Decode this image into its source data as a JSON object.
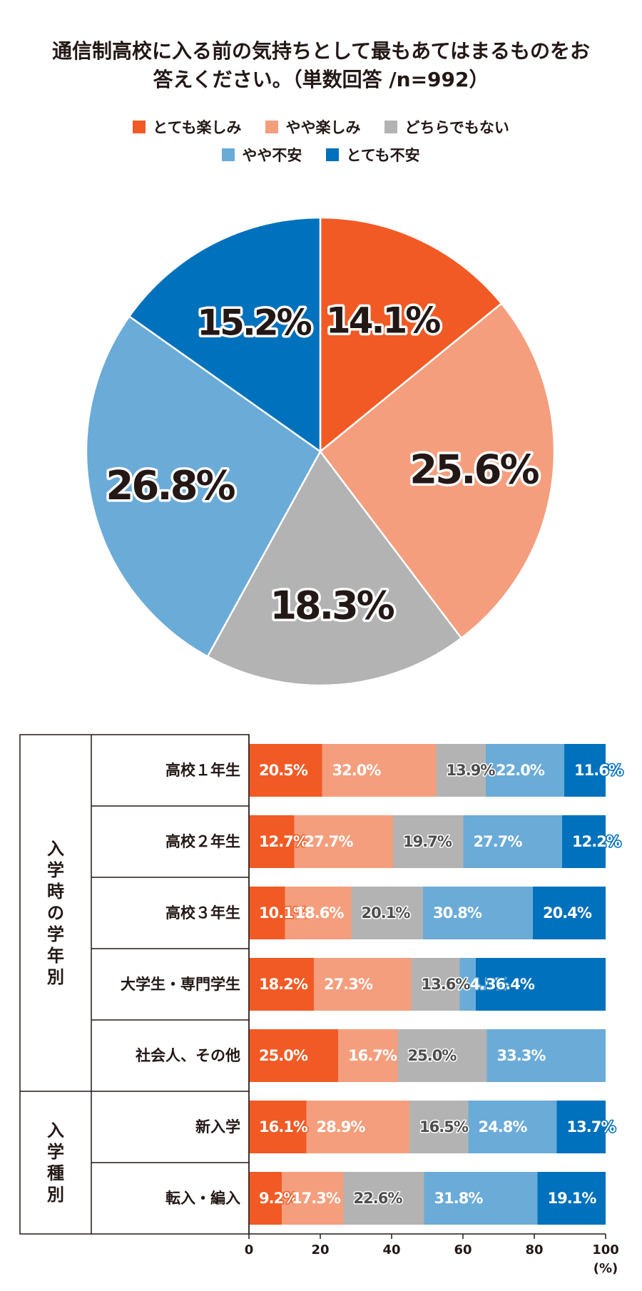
{
  "title_line1": "通信制高校に入る前の気持ちとして最もあてはまるものをお",
  "title_line2": "答えください。（単数回答 /n=992）",
  "chart_data": [
    {
      "type": "pie",
      "categories": [
        "とても楽しみ",
        "やや楽しみ",
        "どちらでもない",
        "やや不安",
        "とても不安"
      ],
      "colors": [
        "#f15a24",
        "#f59e7d",
        "#b3b3b3",
        "#6aabd8",
        "#0071bc"
      ],
      "values": [
        14.1,
        25.6,
        18.3,
        26.8,
        15.2
      ],
      "value_labels": [
        "14.1%",
        "25.6%",
        "18.3%",
        "26.8%",
        "15.2%"
      ],
      "start": "12 o'clock",
      "direction": "clockwise"
    },
    {
      "type": "bar",
      "orientation": "horizontal",
      "stacked": true,
      "categories": [
        "高校１年生",
        "高校２年生",
        "高校３年生",
        "大学生・専門学生",
        "社会人、その他",
        "新入学",
        "転入・編入"
      ],
      "groups": [
        {
          "label": "入学時の学年別",
          "rows": 5
        },
        {
          "label": "入学種別",
          "rows": 2
        }
      ],
      "series": [
        {
          "name": "とても楽しみ",
          "color": "#f15a24",
          "values": [
            20.5,
            12.7,
            10.1,
            18.2,
            25.0,
            16.1,
            9.2
          ],
          "labels": [
            "20.5%",
            "12.7%",
            "10.1%",
            "18.2%",
            "25.0%",
            "16.1%",
            "9.2%"
          ]
        },
        {
          "name": "やや楽しみ",
          "color": "#f59e7d",
          "values": [
            32.0,
            27.7,
            18.6,
            27.3,
            16.7,
            28.9,
            17.3
          ],
          "labels": [
            "32.0%",
            "27.7%",
            "18.6%",
            "27.3%",
            "16.7%",
            "28.9%",
            "17.3%"
          ]
        },
        {
          "name": "どちらでもない",
          "color": "#b3b3b3",
          "values": [
            13.9,
            19.7,
            20.1,
            13.6,
            25.0,
            16.5,
            22.6
          ],
          "labels": [
            "13.9%",
            "19.7%",
            "20.1%",
            "13.6%",
            "25.0%",
            "16.5%",
            "22.6%"
          ]
        },
        {
          "name": "やや不安",
          "color": "#6aabd8",
          "values": [
            22.0,
            27.7,
            30.8,
            4.5,
            33.3,
            24.8,
            31.8
          ],
          "labels": [
            "22.0%",
            "27.7%",
            "30.8%",
            "4.5%",
            "33.3%",
            "24.8%",
            "31.8%"
          ]
        },
        {
          "name": "とても不安",
          "color": "#0071bc",
          "values": [
            11.6,
            12.2,
            20.4,
            36.4,
            0,
            13.7,
            19.1
          ],
          "labels": [
            "11.6%",
            "12.2%",
            "20.4%",
            "36.4%",
            "",
            "13.7%",
            "19.1%"
          ]
        }
      ],
      "xlim": [
        0,
        100
      ],
      "xticks": [
        0,
        20,
        40,
        60,
        80,
        100
      ],
      "xtick_labels": [
        "0",
        "20",
        "40",
        "60",
        "80",
        "100"
      ],
      "x_unit": "(%)"
    }
  ]
}
